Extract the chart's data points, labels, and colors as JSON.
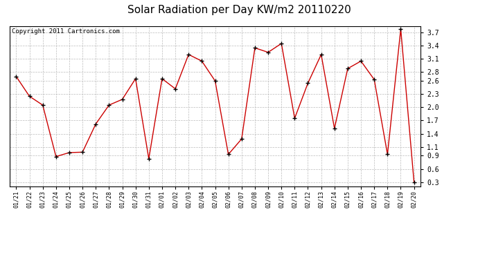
{
  "title": "Solar Radiation per Day KW/m2 20110220",
  "copyright": "Copyright 2011 Cartronics.com",
  "dates": [
    "01/21",
    "01/22",
    "01/23",
    "01/24",
    "01/25",
    "01/26",
    "01/27",
    "01/28",
    "01/29",
    "01/30",
    "01/31",
    "02/01",
    "02/02",
    "02/03",
    "02/04",
    "02/05",
    "02/06",
    "02/07",
    "02/08",
    "02/09",
    "02/10",
    "02/11",
    "02/12",
    "02/13",
    "02/14",
    "02/15",
    "02/16",
    "02/17",
    "02/18",
    "02/19",
    "02/20"
  ],
  "values": [
    2.7,
    2.25,
    2.05,
    0.88,
    0.97,
    0.98,
    1.62,
    2.05,
    2.18,
    2.65,
    0.83,
    2.65,
    2.42,
    3.2,
    3.05,
    2.6,
    0.93,
    1.28,
    3.35,
    3.25,
    3.45,
    1.75,
    2.55,
    3.2,
    1.52,
    2.88,
    3.05,
    2.63,
    0.93,
    3.78,
    0.3
  ],
  "line_color": "#cc0000",
  "marker_color": "#000000",
  "bg_color": "#ffffff",
  "grid_color": "#bbbbbb",
  "yticks": [
    0.3,
    0.6,
    0.9,
    1.1,
    1.4,
    1.7,
    2.0,
    2.3,
    2.6,
    2.8,
    3.1,
    3.4,
    3.7
  ],
  "ymin": 0.2,
  "ymax": 3.85,
  "title_fontsize": 11,
  "copyright_fontsize": 6.5,
  "tick_fontsize": 7,
  "xtick_fontsize": 6
}
